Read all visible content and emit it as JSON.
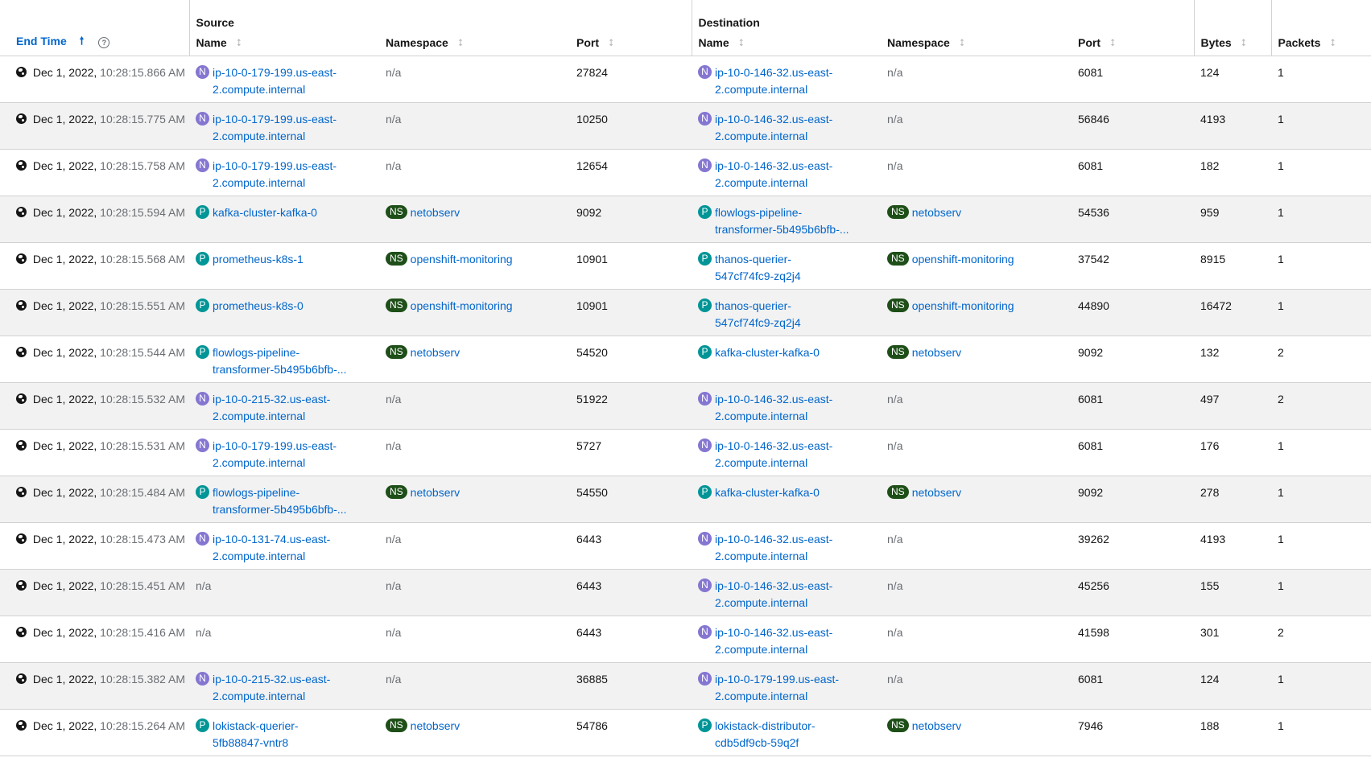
{
  "headers": {
    "end_time": "End Time",
    "source_group": "Source",
    "destination_group": "Destination",
    "name": "Name",
    "namespace": "Namespace",
    "port": "Port",
    "bytes": "Bytes",
    "packets": "Packets",
    "sort_active_glyph": "🠕",
    "sort_glyph": "⭥",
    "help_glyph": "?"
  },
  "colors": {
    "link": "#0066cc",
    "node_badge": "#8476d1",
    "pod_badge": "#009596",
    "ns_badge": "#1e4f18"
  },
  "rows": [
    {
      "date": "Dec 1, 2022,",
      "clock": "10:28:15.866 AM",
      "src_kind": "N",
      "src_name": "ip-10-0-179-199.us-east-\n2.compute.internal",
      "src_ns": "n/a",
      "src_ns_kind": "",
      "src_port": "27824",
      "dst_kind": "N",
      "dst_name": "ip-10-0-146-32.us-east-\n2.compute.internal",
      "dst_ns": "n/a",
      "dst_ns_kind": "",
      "dst_port": "6081",
      "bytes": "124",
      "packets": "1"
    },
    {
      "date": "Dec 1, 2022,",
      "clock": "10:28:15.775 AM",
      "src_kind": "N",
      "src_name": "ip-10-0-179-199.us-east-\n2.compute.internal",
      "src_ns": "n/a",
      "src_ns_kind": "",
      "src_port": "10250",
      "dst_kind": "N",
      "dst_name": "ip-10-0-146-32.us-east-\n2.compute.internal",
      "dst_ns": "n/a",
      "dst_ns_kind": "",
      "dst_port": "56846",
      "bytes": "4193",
      "packets": "1"
    },
    {
      "date": "Dec 1, 2022,",
      "clock": "10:28:15.758 AM",
      "src_kind": "N",
      "src_name": "ip-10-0-179-199.us-east-\n2.compute.internal",
      "src_ns": "n/a",
      "src_ns_kind": "",
      "src_port": "12654",
      "dst_kind": "N",
      "dst_name": "ip-10-0-146-32.us-east-\n2.compute.internal",
      "dst_ns": "n/a",
      "dst_ns_kind": "",
      "dst_port": "6081",
      "bytes": "182",
      "packets": "1"
    },
    {
      "date": "Dec 1, 2022,",
      "clock": "10:28:15.594 AM",
      "src_kind": "P",
      "src_name": "kafka-cluster-kafka-0",
      "src_ns": "netobserv",
      "src_ns_kind": "NS",
      "src_port": "9092",
      "dst_kind": "P",
      "dst_name": "flowlogs-pipeline-\ntransformer-5b495b6bfb-...",
      "dst_ns": "netobserv",
      "dst_ns_kind": "NS",
      "dst_port": "54536",
      "bytes": "959",
      "packets": "1"
    },
    {
      "date": "Dec 1, 2022,",
      "clock": "10:28:15.568 AM",
      "src_kind": "P",
      "src_name": "prometheus-k8s-1",
      "src_ns": "openshift-monitoring",
      "src_ns_kind": "NS",
      "src_port": "10901",
      "dst_kind": "P",
      "dst_name": "thanos-querier-\n547cf74fc9-zq2j4",
      "dst_ns": "openshift-monitoring",
      "dst_ns_kind": "NS",
      "dst_port": "37542",
      "bytes": "8915",
      "packets": "1"
    },
    {
      "date": "Dec 1, 2022,",
      "clock": "10:28:15.551 AM",
      "src_kind": "P",
      "src_name": "prometheus-k8s-0",
      "src_ns": "openshift-monitoring",
      "src_ns_kind": "NS",
      "src_port": "10901",
      "dst_kind": "P",
      "dst_name": "thanos-querier-\n547cf74fc9-zq2j4",
      "dst_ns": "openshift-monitoring",
      "dst_ns_kind": "NS",
      "dst_port": "44890",
      "bytes": "16472",
      "packets": "1"
    },
    {
      "date": "Dec 1, 2022,",
      "clock": "10:28:15.544 AM",
      "src_kind": "P",
      "src_name": "flowlogs-pipeline-\ntransformer-5b495b6bfb-...",
      "src_ns": "netobserv",
      "src_ns_kind": "NS",
      "src_port": "54520",
      "dst_kind": "P",
      "dst_name": "kafka-cluster-kafka-0",
      "dst_ns": "netobserv",
      "dst_ns_kind": "NS",
      "dst_port": "9092",
      "bytes": "132",
      "packets": "2"
    },
    {
      "date": "Dec 1, 2022,",
      "clock": "10:28:15.532 AM",
      "src_kind": "N",
      "src_name": "ip-10-0-215-32.us-east-\n2.compute.internal",
      "src_ns": "n/a",
      "src_ns_kind": "",
      "src_port": "51922",
      "dst_kind": "N",
      "dst_name": "ip-10-0-146-32.us-east-\n2.compute.internal",
      "dst_ns": "n/a",
      "dst_ns_kind": "",
      "dst_port": "6081",
      "bytes": "497",
      "packets": "2"
    },
    {
      "date": "Dec 1, 2022,",
      "clock": "10:28:15.531 AM",
      "src_kind": "N",
      "src_name": "ip-10-0-179-199.us-east-\n2.compute.internal",
      "src_ns": "n/a",
      "src_ns_kind": "",
      "src_port": "5727",
      "dst_kind": "N",
      "dst_name": "ip-10-0-146-32.us-east-\n2.compute.internal",
      "dst_ns": "n/a",
      "dst_ns_kind": "",
      "dst_port": "6081",
      "bytes": "176",
      "packets": "1"
    },
    {
      "date": "Dec 1, 2022,",
      "clock": "10:28:15.484 AM",
      "src_kind": "P",
      "src_name": "flowlogs-pipeline-\ntransformer-5b495b6bfb-...",
      "src_ns": "netobserv",
      "src_ns_kind": "NS",
      "src_port": "54550",
      "dst_kind": "P",
      "dst_name": "kafka-cluster-kafka-0",
      "dst_ns": "netobserv",
      "dst_ns_kind": "NS",
      "dst_port": "9092",
      "bytes": "278",
      "packets": "1"
    },
    {
      "date": "Dec 1, 2022,",
      "clock": "10:28:15.473 AM",
      "src_kind": "N",
      "src_name": "ip-10-0-131-74.us-east-\n2.compute.internal",
      "src_ns": "n/a",
      "src_ns_kind": "",
      "src_port": "6443",
      "dst_kind": "N",
      "dst_name": "ip-10-0-146-32.us-east-\n2.compute.internal",
      "dst_ns": "n/a",
      "dst_ns_kind": "",
      "dst_port": "39262",
      "bytes": "4193",
      "packets": "1"
    },
    {
      "date": "Dec 1, 2022,",
      "clock": "10:28:15.451 AM",
      "src_kind": "",
      "src_name": "n/a",
      "src_ns": "n/a",
      "src_ns_kind": "",
      "src_port": "6443",
      "dst_kind": "N",
      "dst_name": "ip-10-0-146-32.us-east-\n2.compute.internal",
      "dst_ns": "n/a",
      "dst_ns_kind": "",
      "dst_port": "45256",
      "bytes": "155",
      "packets": "1"
    },
    {
      "date": "Dec 1, 2022,",
      "clock": "10:28:15.416 AM",
      "src_kind": "",
      "src_name": "n/a",
      "src_ns": "n/a",
      "src_ns_kind": "",
      "src_port": "6443",
      "dst_kind": "N",
      "dst_name": "ip-10-0-146-32.us-east-\n2.compute.internal",
      "dst_ns": "n/a",
      "dst_ns_kind": "",
      "dst_port": "41598",
      "bytes": "301",
      "packets": "2"
    },
    {
      "date": "Dec 1, 2022,",
      "clock": "10:28:15.382 AM",
      "src_kind": "N",
      "src_name": "ip-10-0-215-32.us-east-\n2.compute.internal",
      "src_ns": "n/a",
      "src_ns_kind": "",
      "src_port": "36885",
      "dst_kind": "N",
      "dst_name": "ip-10-0-179-199.us-east-\n2.compute.internal",
      "dst_ns": "n/a",
      "dst_ns_kind": "",
      "dst_port": "6081",
      "bytes": "124",
      "packets": "1"
    },
    {
      "date": "Dec 1, 2022,",
      "clock": "10:28:15.264 AM",
      "src_kind": "P",
      "src_name": "lokistack-querier-\n5fb88847-vntr8",
      "src_ns": "netobserv",
      "src_ns_kind": "NS",
      "src_port": "54786",
      "dst_kind": "P",
      "dst_name": "lokistack-distributor-\ncdb5df9cb-59q2f",
      "dst_ns": "netobserv",
      "dst_ns_kind": "NS",
      "dst_port": "7946",
      "bytes": "188",
      "packets": "1"
    }
  ]
}
